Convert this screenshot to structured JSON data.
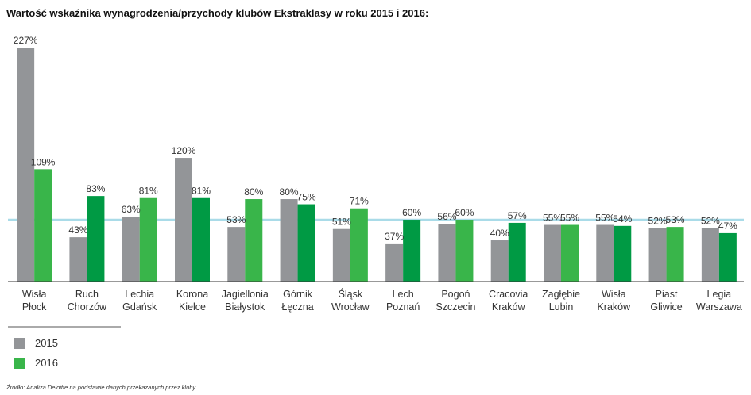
{
  "title": "Wartość wskaźnika wynagrodzenia/przychody klubów Ekstraklasy w roku 2015 i 2016:",
  "source": "Źródło: Analiza Deloitte na podstawie danych przekazanych przez kluby.",
  "colors": {
    "series_2015": "#939598",
    "series_2016_light": "#39b54a",
    "series_2016_dark": "#009a44",
    "reference_line": "#a9dbe8",
    "axis": "#333333"
  },
  "chart_data": {
    "type": "bar",
    "title": "Wartość wskaźnika wynagrodzenia/przychody klubów Ekstraklasy w roku 2015 i 2016:",
    "categories": [
      [
        "Wisła",
        "Płock"
      ],
      [
        "Ruch",
        "Chorzów"
      ],
      [
        "Lechia",
        "Gdańsk"
      ],
      [
        "Korona",
        "Kielce"
      ],
      [
        "Jagiellonia",
        "Białystok"
      ],
      [
        "Górnik",
        "Łęczna"
      ],
      [
        "Śląsk",
        "Wrocław"
      ],
      [
        "Lech",
        "Poznań"
      ],
      [
        "Pogoń",
        "Szczecin"
      ],
      [
        "Cracovia",
        "Kraków"
      ],
      [
        "Zagłębie",
        "Lubin"
      ],
      [
        "Wisła",
        "Kraków"
      ],
      [
        "Piast",
        "Gliwice"
      ],
      [
        "Legia",
        "Warszawa"
      ]
    ],
    "series": [
      {
        "name": "2015",
        "values": [
          227,
          43,
          63,
          120,
          53,
          80,
          51,
          37,
          56,
          40,
          55,
          55,
          52,
          52
        ]
      },
      {
        "name": "2016",
        "values": [
          109,
          83,
          81,
          81,
          80,
          75,
          71,
          60,
          60,
          57,
          55,
          54,
          53,
          47
        ]
      }
    ],
    "value_suffix": "%",
    "reference_line_value": 60,
    "ylim": [
      0,
      235
    ],
    "legend_position": "bottom-left",
    "grid": false
  }
}
